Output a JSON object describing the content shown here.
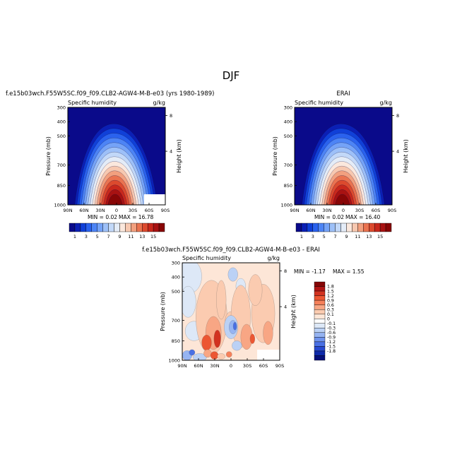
{
  "page": {
    "title": "DJF"
  },
  "chart_data": [
    {
      "type": "heatmap",
      "title": "f.e15b03wch.F55W5SC.f09_f09.CLB2-AGW4-M-B-e03 (yrs 1980-1989)",
      "subtitle_left": "Specific humidity",
      "subtitle_right": "g/kg",
      "ylabel": "Pressure (mb)",
      "ylabel_right": "Height (km)",
      "x_ticks": [
        "90N",
        "60N",
        "30N",
        "0",
        "30S",
        "60S",
        "90S"
      ],
      "y_ticks": [
        "300",
        "400",
        "500",
        "700",
        "850",
        "1000"
      ],
      "y_right_ticks": [
        "8",
        "4"
      ],
      "ylim": [
        1000,
        300
      ],
      "min_label": "MIN =   0.02",
      "max_label": "MAX =  16.78",
      "colorbar_ticks": [
        "1",
        "3",
        "5",
        "7",
        "9",
        "11",
        "13",
        "15"
      ],
      "colorbar_orientation": "horizontal"
    },
    {
      "type": "heatmap",
      "title": "ERAI",
      "subtitle_left": "Specific humidity",
      "subtitle_right": "g/kg",
      "ylabel": "Pressure (mb)",
      "ylabel_right": "Height (km)",
      "x_ticks": [
        "90N",
        "60N",
        "30N",
        "0",
        "30S",
        "60S",
        "90S"
      ],
      "y_ticks": [
        "300",
        "400",
        "500",
        "700",
        "850",
        "1000"
      ],
      "y_right_ticks": [
        "8",
        "4"
      ],
      "ylim": [
        1000,
        300
      ],
      "min_label": "MIN =   0.02",
      "max_label": "MAX =  16.40",
      "colorbar_ticks": [
        "1",
        "3",
        "5",
        "7",
        "9",
        "11",
        "13",
        "15"
      ],
      "colorbar_orientation": "horizontal"
    },
    {
      "type": "heatmap",
      "title": "f.e15b03wch.F55W5SC.f09_f09.CLB2-AGW4-M-B-e03 - ERAI",
      "subtitle_left": "Specific humidity",
      "subtitle_right": "g/kg",
      "ylabel": "Pressure (mb)",
      "ylabel_right": "Height (km)",
      "x_ticks": [
        "90N",
        "60N",
        "30N",
        "0",
        "30S",
        "60S",
        "90S"
      ],
      "y_ticks": [
        "300",
        "400",
        "500",
        "700",
        "850",
        "1000"
      ],
      "y_right_ticks": [
        "8",
        "4"
      ],
      "ylim": [
        1000,
        300
      ],
      "min_label": "MIN = -1.17",
      "max_label": "MAX =   1.55",
      "colorbar_ticks": [
        "1.8",
        "1.5",
        "1.2",
        "0.9",
        "0.6",
        "0.3",
        "0.1",
        "0",
        "-0.1",
        "-0.3",
        "-0.6",
        "-0.9",
        "-1.2",
        "-1.5",
        "-1.8"
      ],
      "colorbar_orientation": "vertical"
    }
  ],
  "colors": {
    "seq_levels": [
      "#0a0a8a",
      "#0b1fb5",
      "#1040d8",
      "#2a62ee",
      "#4d84f5",
      "#75a3f7",
      "#9dc0f8",
      "#c2d8f8",
      "#e4ecf7",
      "#fbe8dd",
      "#f7c8b0",
      "#f2a07f",
      "#ea7350",
      "#dc4a2e",
      "#c8281c",
      "#a81212",
      "#880606"
    ],
    "div_levels": [
      "#850505",
      "#b01414",
      "#d23220",
      "#ec5632",
      "#f5805a",
      "#f8a684",
      "#fbcbb0",
      "#fde6d7",
      "#ffffff",
      "#dde8f7",
      "#bbd1f5",
      "#96b4f2",
      "#6f93ee",
      "#4a70e4",
      "#2749d0",
      "#0e2aaa",
      "#050f7a"
    ]
  }
}
